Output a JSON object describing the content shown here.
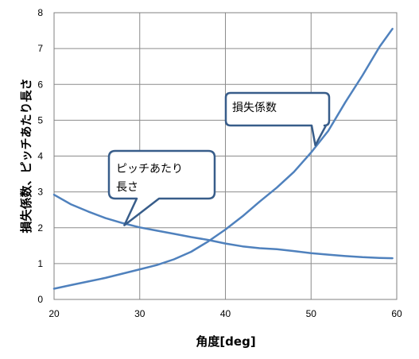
{
  "chart_data": {
    "type": "line",
    "xlabel": "角度[deg]",
    "ylabel": "損失係数、ピッチあたり長さ",
    "xlim": [
      20,
      60
    ],
    "ylim": [
      0,
      8
    ],
    "xticks": [
      20,
      30,
      40,
      50,
      60
    ],
    "yticks": [
      0,
      1,
      2,
      3,
      4,
      5,
      6,
      7,
      8
    ],
    "grid": true,
    "series_color": "#4f81bd",
    "series": [
      {
        "name": "ピッチあたり長さ",
        "x": [
          20,
          22,
          24,
          26,
          28,
          30,
          32,
          34,
          36,
          38,
          40,
          42,
          44,
          46,
          48,
          50,
          52,
          54,
          56,
          58,
          59.5
        ],
        "y": [
          2.92,
          2.65,
          2.45,
          2.27,
          2.13,
          2.01,
          1.92,
          1.83,
          1.74,
          1.66,
          1.56,
          1.48,
          1.43,
          1.4,
          1.35,
          1.29,
          1.25,
          1.21,
          1.18,
          1.16,
          1.15
        ]
      },
      {
        "name": "損失係数",
        "x": [
          20,
          22,
          24,
          26,
          28,
          30,
          32,
          34,
          36,
          38,
          40,
          42,
          44,
          46,
          48,
          50,
          52,
          54,
          56,
          58,
          59.5
        ],
        "y": [
          0.3,
          0.4,
          0.5,
          0.6,
          0.72,
          0.84,
          0.96,
          1.12,
          1.33,
          1.62,
          1.95,
          2.32,
          2.73,
          3.12,
          3.56,
          4.1,
          4.7,
          5.5,
          6.25,
          7.05,
          7.55
        ]
      }
    ],
    "annotations": [
      {
        "text": "損失係数",
        "target": [
          50.5,
          4.3
        ]
      },
      {
        "text_line1": "ピッチあたり",
        "text_line2": "長さ",
        "target": [
          28.2,
          2.07
        ]
      }
    ]
  }
}
